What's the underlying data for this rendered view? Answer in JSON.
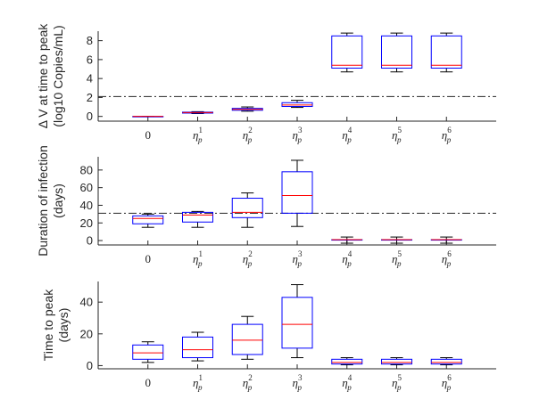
{
  "chart_data": [
    {
      "type": "boxplot",
      "ylabel": [
        "Δ V at time to peak",
        "(log10 Copies/mL)"
      ],
      "ylim": [
        -0.5,
        9
      ],
      "yticks": [
        0,
        2,
        4,
        6,
        8
      ],
      "reference_line": 2.1,
      "categories": [
        {
          "base": "0",
          "sup": "",
          "sub": ""
        },
        {
          "base": "η",
          "sup": "1",
          "sub": "p"
        },
        {
          "base": "η",
          "sup": "2",
          "sub": "p"
        },
        {
          "base": "η",
          "sup": "3",
          "sub": "p"
        },
        {
          "base": "η",
          "sup": "4",
          "sub": "p"
        },
        {
          "base": "η",
          "sup": "5",
          "sub": "p"
        },
        {
          "base": "η",
          "sup": "6",
          "sub": "p"
        }
      ],
      "boxes": [
        {
          "min": 0,
          "q1": 0,
          "median": 0,
          "q3": 0,
          "max": 0
        },
        {
          "min": 0.3,
          "q1": 0.35,
          "median": 0.4,
          "q3": 0.45,
          "max": 0.5
        },
        {
          "min": 0.55,
          "q1": 0.65,
          "median": 0.75,
          "q3": 0.85,
          "max": 1.0
        },
        {
          "min": 0.95,
          "q1": 1.05,
          "median": 1.2,
          "q3": 1.45,
          "max": 1.7
        },
        {
          "min": 4.7,
          "q1": 5.1,
          "median": 5.4,
          "q3": 8.5,
          "max": 8.8
        },
        {
          "min": 4.7,
          "q1": 5.1,
          "median": 5.4,
          "q3": 8.5,
          "max": 8.8
        },
        {
          "min": 4.7,
          "q1": 5.1,
          "median": 5.4,
          "q3": 8.5,
          "max": 8.8
        }
      ]
    },
    {
      "type": "boxplot",
      "ylabel": [
        "Duration of infection",
        "(days)"
      ],
      "ylim": [
        -5,
        95
      ],
      "yticks": [
        0,
        20,
        40,
        60,
        80
      ],
      "reference_line": 31,
      "categories": [
        {
          "base": "0",
          "sup": "",
          "sub": ""
        },
        {
          "base": "η",
          "sup": "1",
          "sub": "p"
        },
        {
          "base": "η",
          "sup": "2",
          "sub": "p"
        },
        {
          "base": "η",
          "sup": "3",
          "sub": "p"
        },
        {
          "base": "η",
          "sup": "4",
          "sub": "p"
        },
        {
          "base": "η",
          "sup": "5",
          "sub": "p"
        },
        {
          "base": "η",
          "sup": "6",
          "sub": "p"
        }
      ],
      "boxes": [
        {
          "min": 15,
          "q1": 19,
          "median": 25,
          "q3": 28,
          "max": 30
        },
        {
          "min": 15,
          "q1": 21,
          "median": 29,
          "q3": 32,
          "max": 33
        },
        {
          "min": 15,
          "q1": 26,
          "median": 32,
          "q3": 48,
          "max": 54
        },
        {
          "min": 16,
          "q1": 31,
          "median": 51,
          "q3": 78,
          "max": 91
        },
        {
          "min": -3,
          "q1": 1,
          "median": 1,
          "q3": 1,
          "max": 4
        },
        {
          "min": -3,
          "q1": 1,
          "median": 1,
          "q3": 1,
          "max": 4
        },
        {
          "min": -3,
          "q1": 1,
          "median": 1,
          "q3": 1,
          "max": 4
        }
      ]
    },
    {
      "type": "boxplot",
      "ylabel": [
        "Time to peak",
        "(days)"
      ],
      "ylim": [
        -2,
        53
      ],
      "yticks": [
        0,
        20,
        40
      ],
      "reference_line": null,
      "categories": [
        {
          "base": "0",
          "sup": "",
          "sub": ""
        },
        {
          "base": "η",
          "sup": "1",
          "sub": "p"
        },
        {
          "base": "η",
          "sup": "2",
          "sub": "p"
        },
        {
          "base": "η",
          "sup": "3",
          "sub": "p"
        },
        {
          "base": "η",
          "sup": "4",
          "sub": "p"
        },
        {
          "base": "η",
          "sup": "5",
          "sub": "p"
        },
        {
          "base": "η",
          "sup": "6",
          "sub": "p"
        }
      ],
      "boxes": [
        {
          "min": 2,
          "q1": 4,
          "median": 8,
          "q3": 13,
          "max": 15
        },
        {
          "min": 3,
          "q1": 5,
          "median": 10,
          "q3": 18,
          "max": 21
        },
        {
          "min": 4,
          "q1": 7,
          "median": 16,
          "q3": 26,
          "max": 31
        },
        {
          "min": 5,
          "q1": 11,
          "median": 26,
          "q3": 43,
          "max": 51
        },
        {
          "min": 0.5,
          "q1": 1,
          "median": 2,
          "q3": 4,
          "max": 5
        },
        {
          "min": 0.5,
          "q1": 1,
          "median": 2,
          "q3": 4,
          "max": 5
        },
        {
          "min": 0.5,
          "q1": 1,
          "median": 2,
          "q3": 4,
          "max": 5
        }
      ]
    }
  ]
}
